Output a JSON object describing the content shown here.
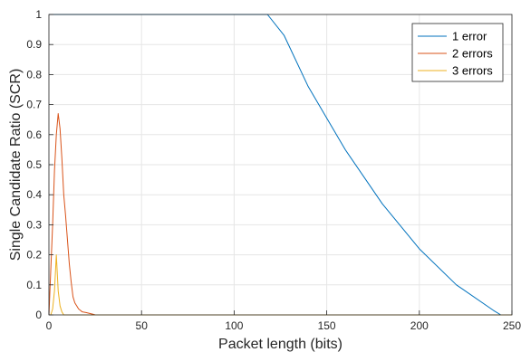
{
  "chart_data": {
    "type": "line",
    "title": "",
    "xlabel": "Packet length (bits)",
    "ylabel": "Single Candidate Ratio (SCR)",
    "xlim": [
      0,
      250
    ],
    "ylim": [
      0,
      1
    ],
    "xticks": [
      "0",
      "50",
      "100",
      "150",
      "200",
      "250"
    ],
    "yticks": [
      "0",
      "0.1",
      "0.2",
      "0.3",
      "0.4",
      "0.5",
      "0.6",
      "0.7",
      "0.8",
      "0.9",
      "1"
    ],
    "grid": true,
    "legend_position": "top-right",
    "series": [
      {
        "name": "1 error",
        "color": "#0072BD",
        "x": [
          0,
          20,
          50,
          100,
          118,
          127,
          140,
          160,
          180,
          200,
          220,
          240,
          244
        ],
        "y": [
          1,
          1,
          1,
          1,
          1,
          0.93,
          0.76,
          0.55,
          0.37,
          0.22,
          0.1,
          0.015,
          0
        ]
      },
      {
        "name": "2 errors",
        "color": "#D95319",
        "x": [
          0,
          1,
          2,
          3,
          4,
          5,
          6,
          7,
          8,
          9,
          10,
          11,
          12,
          13,
          14,
          15,
          16,
          17,
          18,
          20,
          22,
          24,
          25,
          30,
          50,
          100,
          150,
          200,
          250
        ],
        "y": [
          0,
          0.15,
          0.3,
          0.48,
          0.6,
          0.67,
          0.62,
          0.52,
          0.4,
          0.33,
          0.25,
          0.17,
          0.11,
          0.06,
          0.04,
          0.03,
          0.02,
          0.015,
          0.01,
          0.008,
          0.005,
          0.002,
          0,
          0,
          0,
          0,
          0,
          0,
          0
        ]
      },
      {
        "name": "3 errors",
        "color": "#EDB120",
        "x": [
          0,
          1,
          2,
          3,
          4,
          5,
          6,
          7,
          8,
          10,
          50,
          100,
          150,
          200,
          250
        ],
        "y": [
          0,
          0,
          0.02,
          0.08,
          0.2,
          0.08,
          0.03,
          0.01,
          0,
          0,
          0,
          0,
          0,
          0,
          0
        ]
      }
    ]
  }
}
